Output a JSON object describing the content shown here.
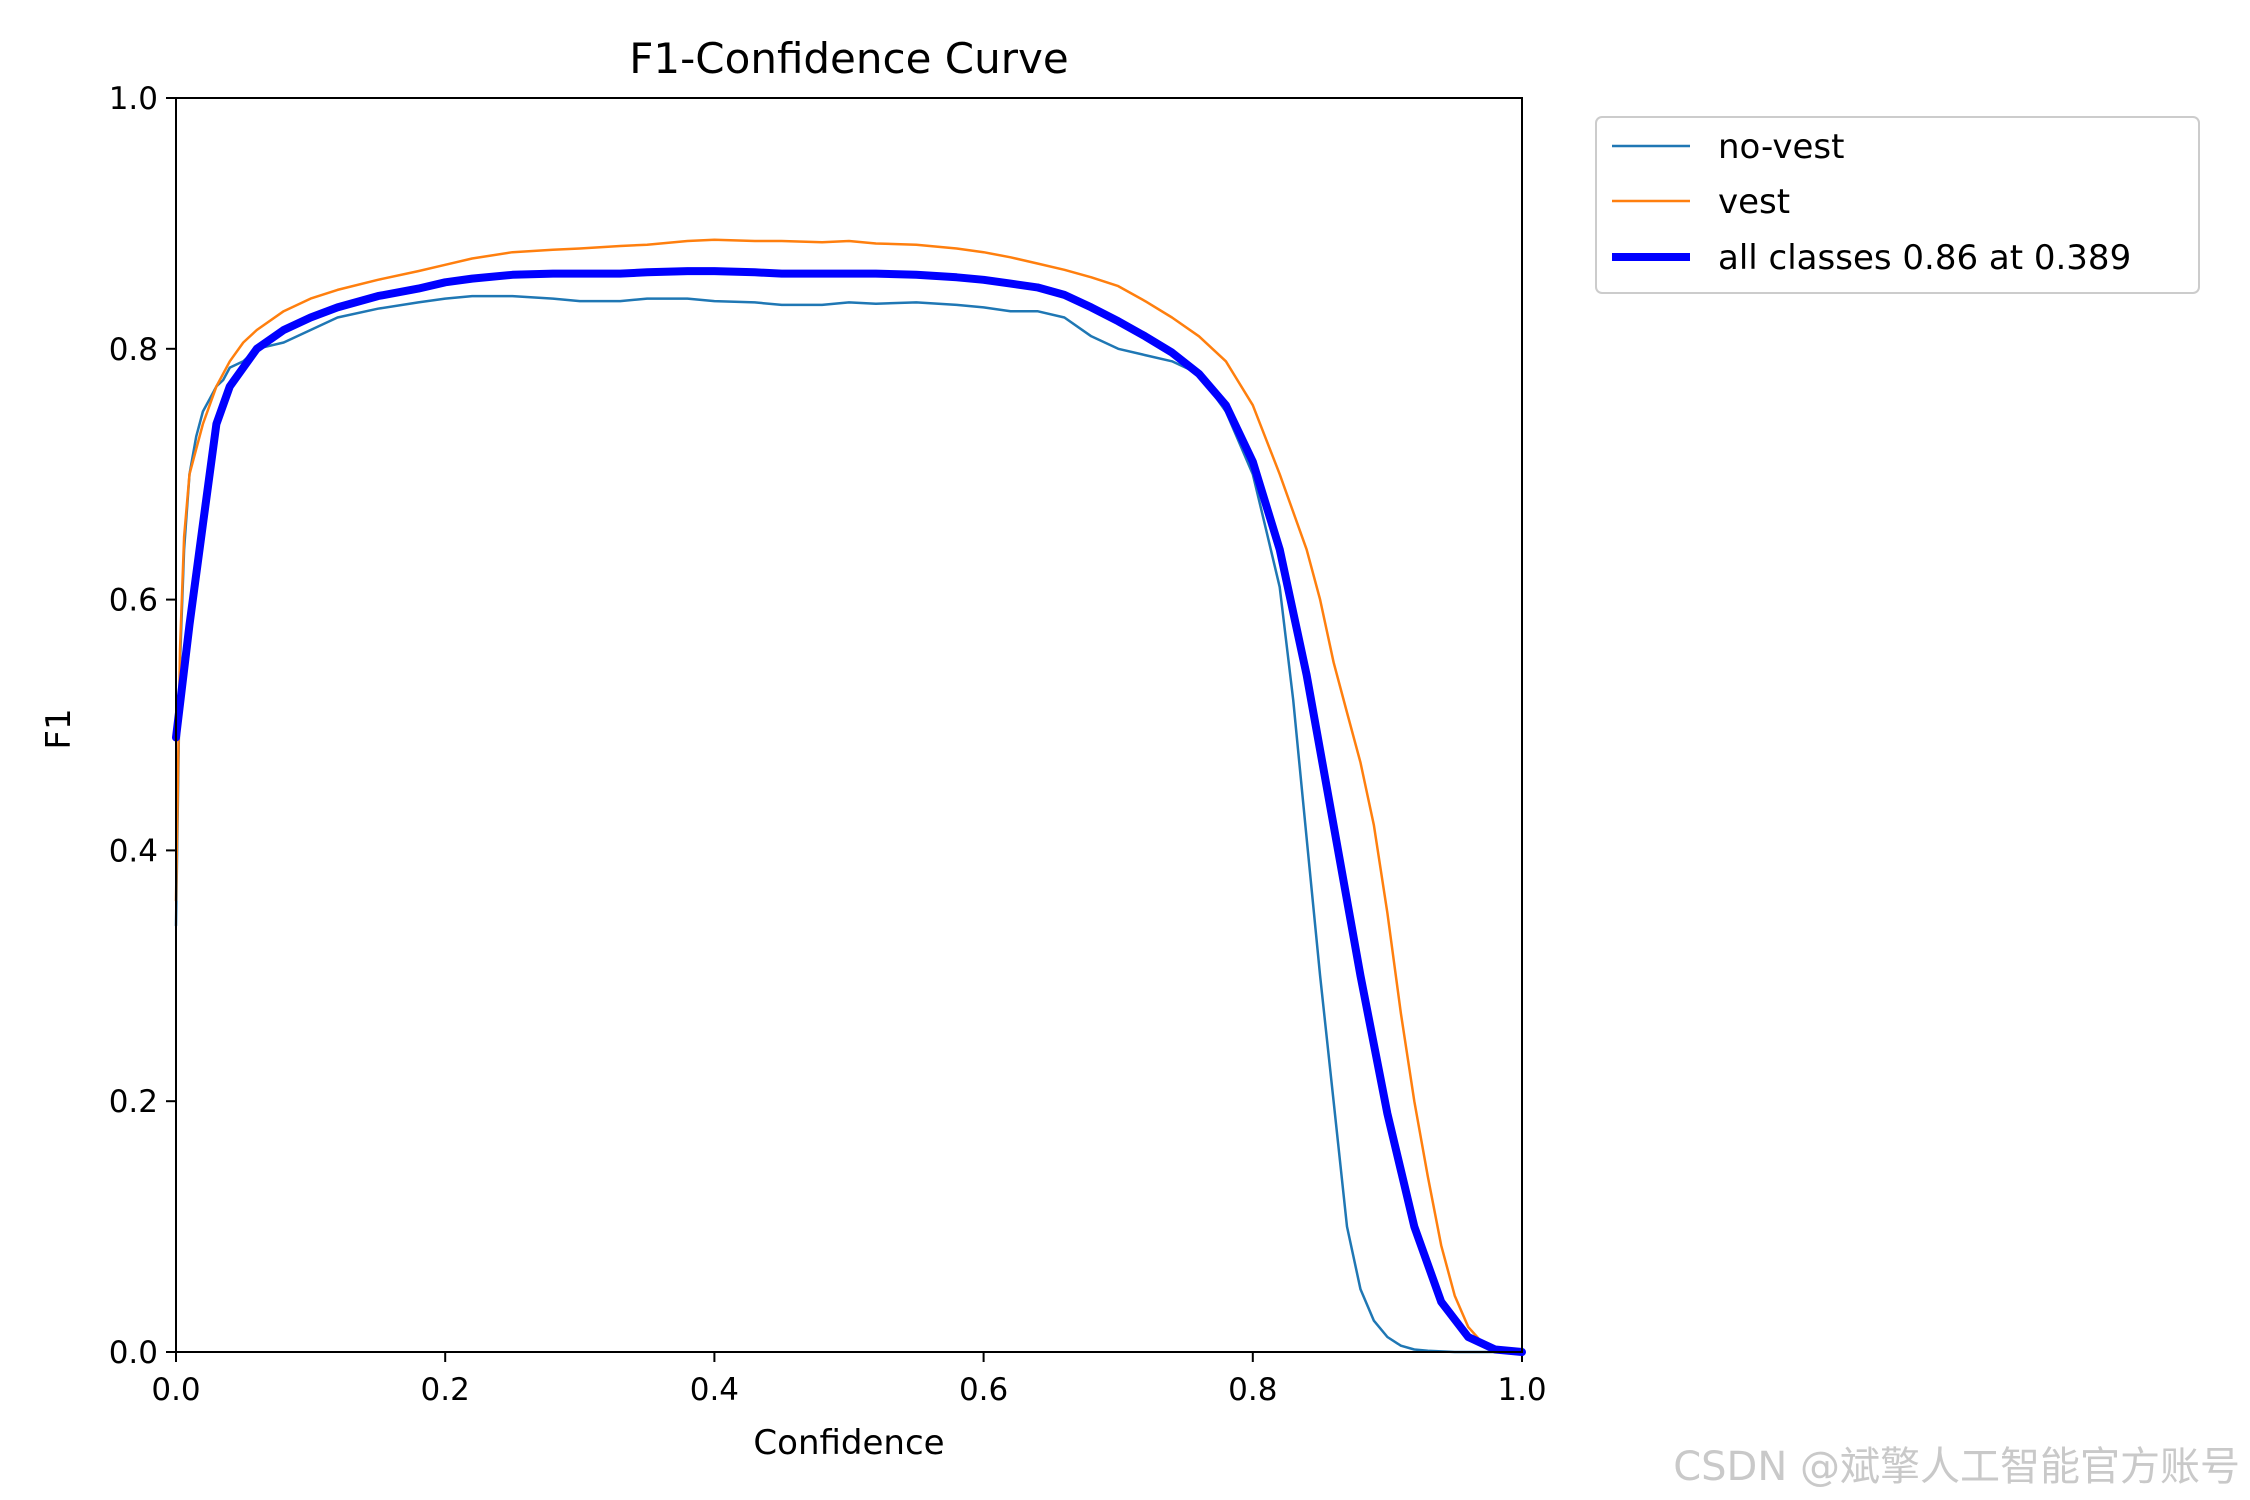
{
  "watermark": "CSDN @斌擎人工智能官方账号",
  "chart_data": {
    "type": "line",
    "title": "F1-Confidence Curve",
    "xlabel": "Confidence",
    "ylabel": "F1",
    "xlim": [
      0.0,
      1.0
    ],
    "ylim": [
      0.0,
      1.0
    ],
    "xticks": [
      "0.0",
      "0.2",
      "0.4",
      "0.6",
      "0.8",
      "1.0"
    ],
    "yticks": [
      "0.0",
      "0.2",
      "0.4",
      "0.6",
      "0.8",
      "1.0"
    ],
    "grid": false,
    "legend_position": "outside-top-right",
    "series": [
      {
        "name": "no-vest",
        "color": "#1f77b4",
        "x": [
          0.0,
          0.003,
          0.006,
          0.01,
          0.015,
          0.02,
          0.025,
          0.03,
          0.035,
          0.04,
          0.05,
          0.06,
          0.08,
          0.1,
          0.12,
          0.15,
          0.18,
          0.2,
          0.22,
          0.25,
          0.28,
          0.3,
          0.33,
          0.35,
          0.38,
          0.4,
          0.43,
          0.45,
          0.48,
          0.5,
          0.52,
          0.55,
          0.58,
          0.6,
          0.62,
          0.64,
          0.66,
          0.68,
          0.7,
          0.72,
          0.74,
          0.76,
          0.78,
          0.8,
          0.81,
          0.82,
          0.83,
          0.84,
          0.85,
          0.86,
          0.87,
          0.88,
          0.89,
          0.9,
          0.91,
          0.92,
          0.93,
          0.95,
          0.97,
          1.0
        ],
        "y": [
          0.34,
          0.55,
          0.64,
          0.7,
          0.73,
          0.75,
          0.76,
          0.77,
          0.775,
          0.785,
          0.79,
          0.8,
          0.805,
          0.815,
          0.825,
          0.832,
          0.837,
          0.84,
          0.842,
          0.842,
          0.84,
          0.838,
          0.838,
          0.84,
          0.84,
          0.838,
          0.837,
          0.835,
          0.835,
          0.837,
          0.836,
          0.837,
          0.835,
          0.833,
          0.83,
          0.83,
          0.825,
          0.81,
          0.8,
          0.795,
          0.79,
          0.78,
          0.75,
          0.7,
          0.655,
          0.61,
          0.52,
          0.41,
          0.3,
          0.2,
          0.1,
          0.05,
          0.025,
          0.012,
          0.005,
          0.002,
          0.001,
          0.0,
          0.0,
          0.0
        ]
      },
      {
        "name": "vest",
        "color": "#ff7f0e",
        "x": [
          0.0,
          0.003,
          0.006,
          0.01,
          0.015,
          0.02,
          0.03,
          0.04,
          0.05,
          0.06,
          0.08,
          0.1,
          0.12,
          0.15,
          0.18,
          0.2,
          0.22,
          0.25,
          0.28,
          0.3,
          0.33,
          0.35,
          0.38,
          0.4,
          0.43,
          0.45,
          0.48,
          0.5,
          0.52,
          0.55,
          0.58,
          0.6,
          0.62,
          0.64,
          0.66,
          0.68,
          0.7,
          0.72,
          0.74,
          0.76,
          0.78,
          0.8,
          0.82,
          0.84,
          0.85,
          0.86,
          0.87,
          0.88,
          0.89,
          0.9,
          0.91,
          0.92,
          0.93,
          0.94,
          0.95,
          0.96,
          0.97,
          0.98,
          1.0
        ],
        "y": [
          0.36,
          0.56,
          0.65,
          0.7,
          0.72,
          0.74,
          0.77,
          0.79,
          0.805,
          0.815,
          0.83,
          0.84,
          0.847,
          0.855,
          0.862,
          0.867,
          0.872,
          0.877,
          0.879,
          0.88,
          0.882,
          0.883,
          0.886,
          0.887,
          0.886,
          0.886,
          0.885,
          0.886,
          0.884,
          0.883,
          0.88,
          0.877,
          0.873,
          0.868,
          0.863,
          0.857,
          0.85,
          0.838,
          0.825,
          0.81,
          0.79,
          0.755,
          0.7,
          0.64,
          0.6,
          0.55,
          0.51,
          0.47,
          0.42,
          0.35,
          0.27,
          0.2,
          0.14,
          0.085,
          0.045,
          0.02,
          0.008,
          0.002,
          0.0
        ]
      },
      {
        "name": "all classes 0.86 at 0.389",
        "color": "#0000ff",
        "x": [
          0.0,
          0.01,
          0.02,
          0.03,
          0.04,
          0.05,
          0.06,
          0.08,
          0.1,
          0.12,
          0.15,
          0.18,
          0.2,
          0.22,
          0.25,
          0.28,
          0.3,
          0.33,
          0.35,
          0.38,
          0.4,
          0.43,
          0.45,
          0.48,
          0.5,
          0.52,
          0.55,
          0.58,
          0.6,
          0.62,
          0.64,
          0.66,
          0.68,
          0.7,
          0.72,
          0.74,
          0.76,
          0.78,
          0.8,
          0.82,
          0.84,
          0.86,
          0.88,
          0.9,
          0.92,
          0.94,
          0.96,
          0.98,
          1.0
        ],
        "y": [
          0.49,
          0.58,
          0.66,
          0.74,
          0.77,
          0.785,
          0.8,
          0.815,
          0.825,
          0.833,
          0.842,
          0.848,
          0.853,
          0.856,
          0.859,
          0.86,
          0.86,
          0.86,
          0.861,
          0.862,
          0.862,
          0.861,
          0.86,
          0.86,
          0.86,
          0.86,
          0.859,
          0.857,
          0.855,
          0.852,
          0.849,
          0.843,
          0.833,
          0.822,
          0.81,
          0.797,
          0.78,
          0.755,
          0.71,
          0.64,
          0.54,
          0.42,
          0.3,
          0.19,
          0.1,
          0.04,
          0.012,
          0.002,
          0.0
        ]
      }
    ]
  }
}
